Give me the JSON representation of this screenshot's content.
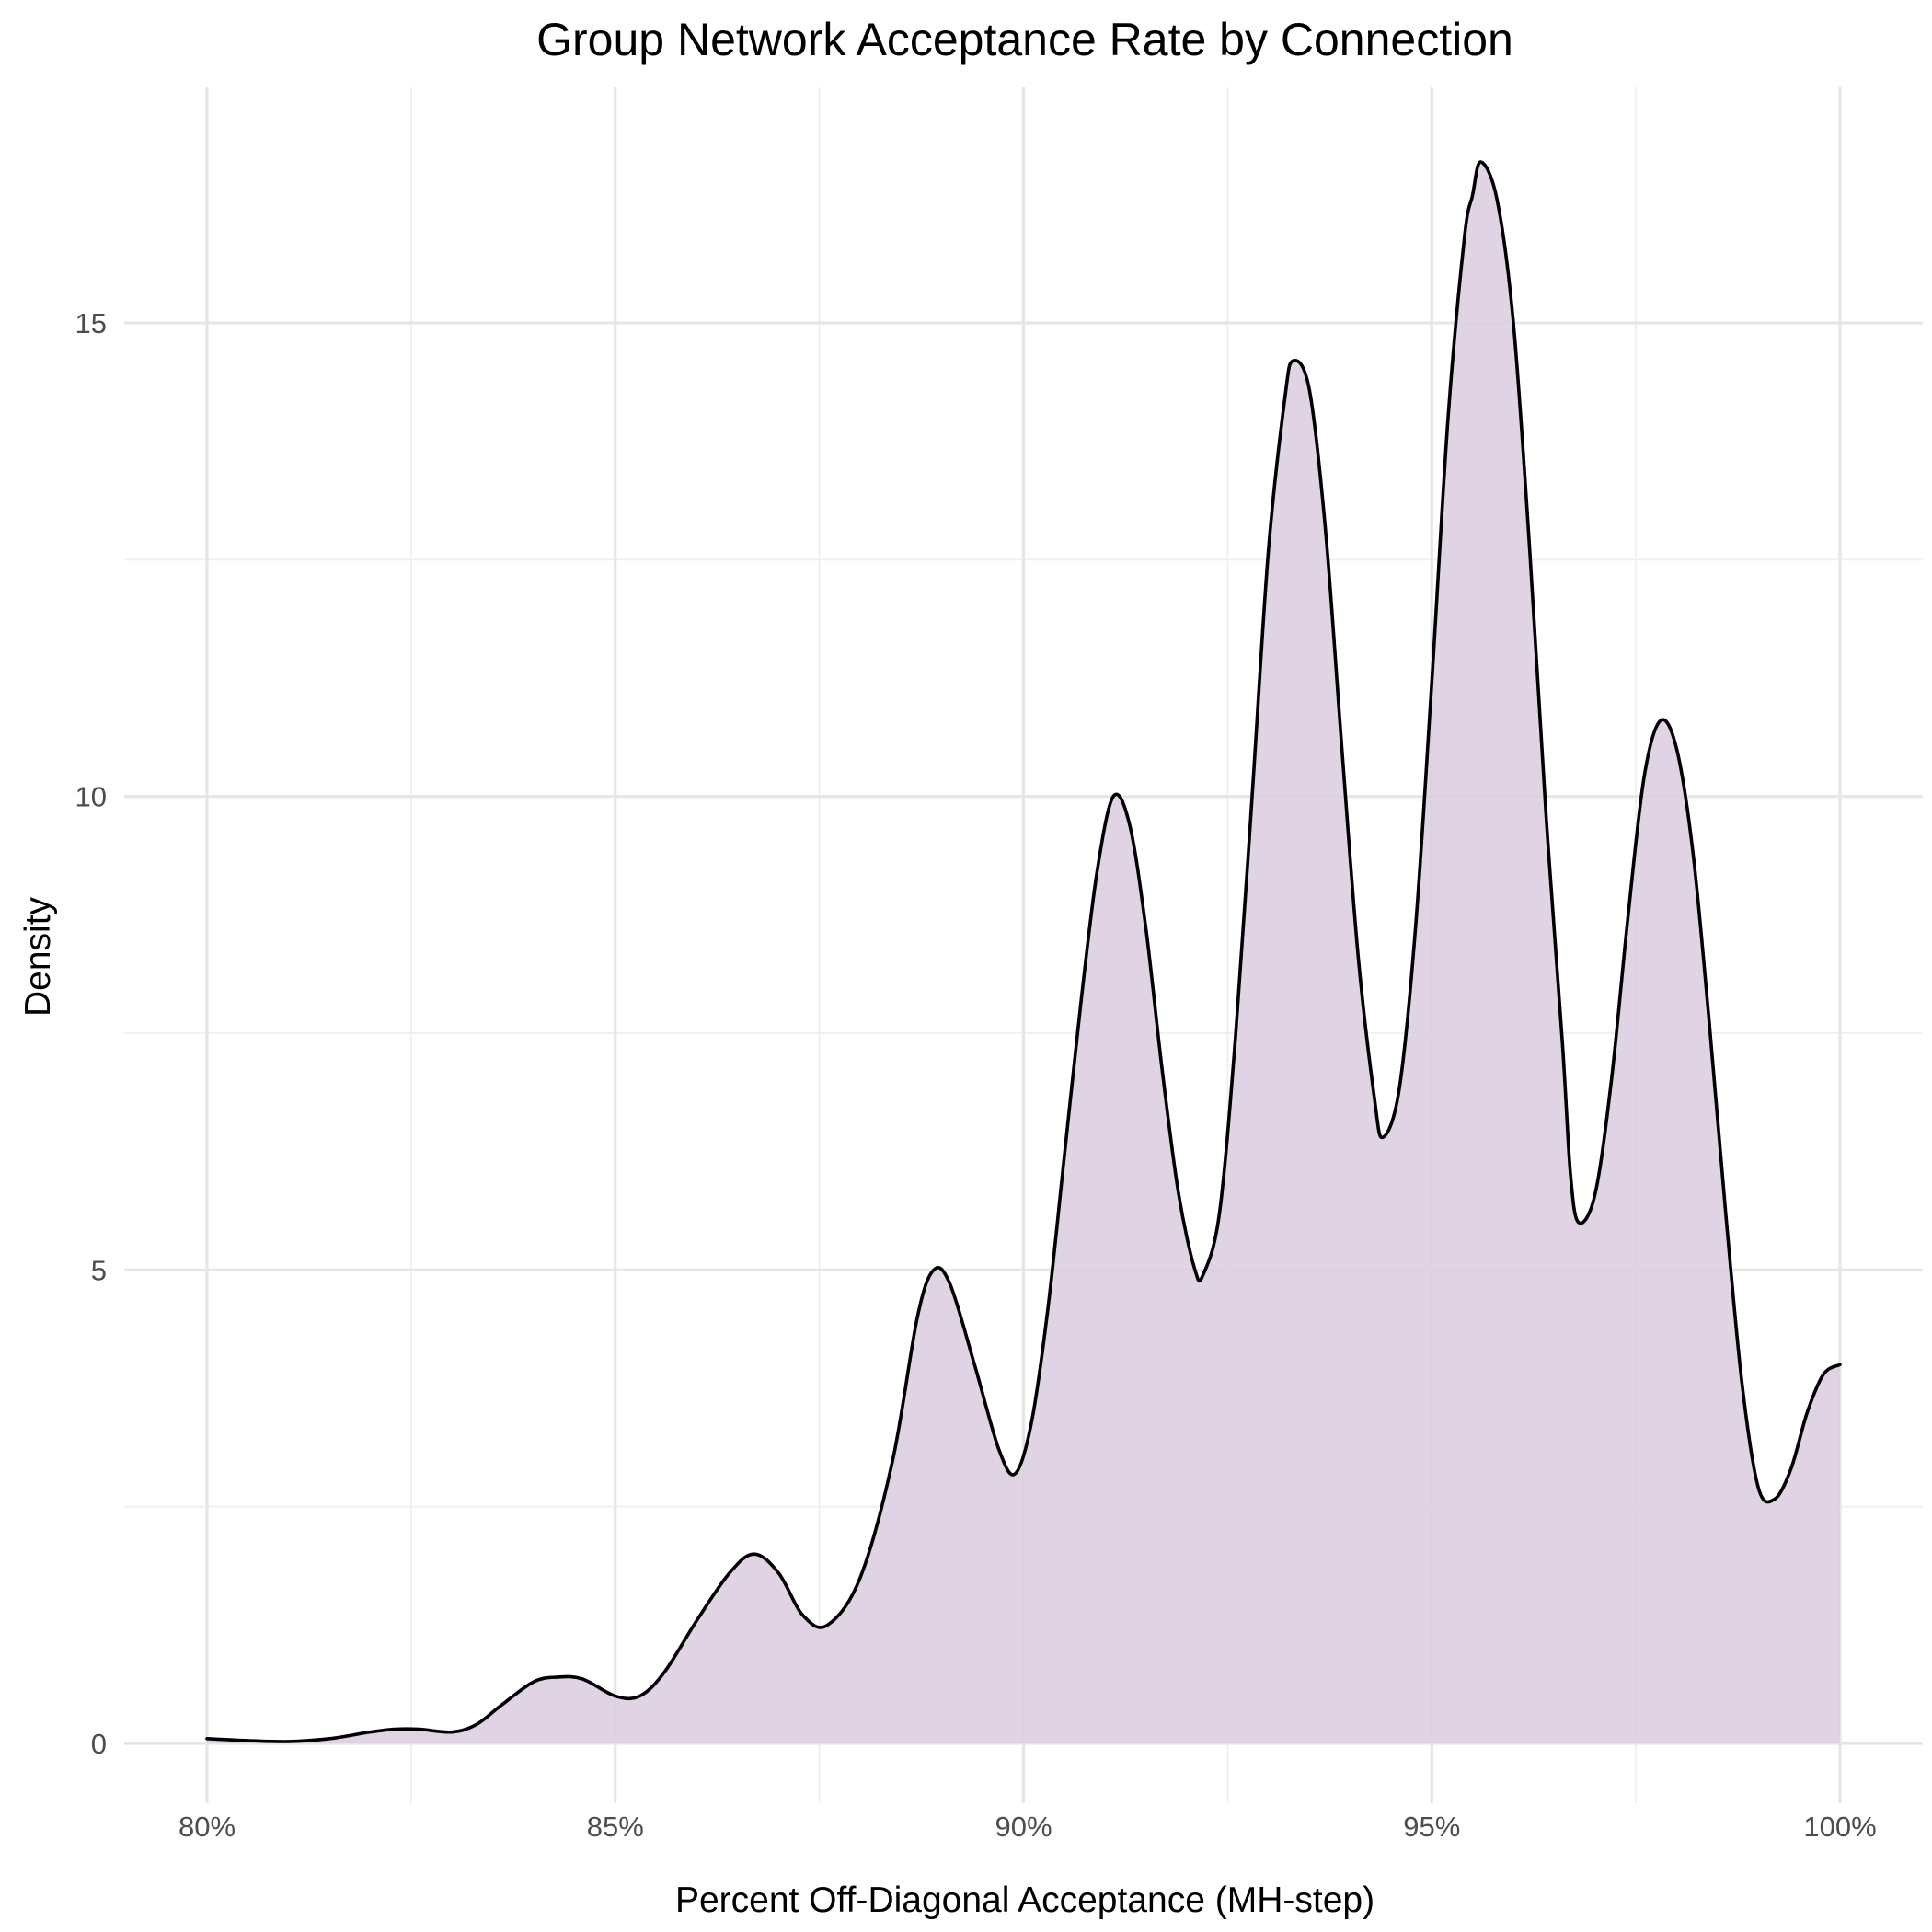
{
  "chart_data": {
    "type": "area",
    "title": "Group Network Acceptance Rate by Connection",
    "xlabel": "Percent Off-Diagonal Acceptance (MH-step)",
    "ylabel": "Density",
    "xlim": [
      0.8,
      1.0
    ],
    "ylim": [
      0,
      16.6
    ],
    "x_ticks": [
      0.8,
      0.85,
      0.9,
      0.95,
      1.0
    ],
    "x_tick_labels": [
      "80%",
      "85%",
      "90%",
      "95%",
      "100%"
    ],
    "y_ticks": [
      0,
      5,
      10,
      15
    ],
    "y_tick_labels": [
      "0",
      "5",
      "10",
      "15"
    ],
    "grid": true,
    "legend": "none",
    "fill_color": "#dbcddf",
    "line_color": "#000000",
    "series": [
      {
        "values": [
          [
            0.8,
            0.05
          ],
          [
            0.805,
            0.03
          ],
          [
            0.81,
            0.02
          ],
          [
            0.815,
            0.05
          ],
          [
            0.82,
            0.12
          ],
          [
            0.823,
            0.15
          ],
          [
            0.826,
            0.15
          ],
          [
            0.83,
            0.12
          ],
          [
            0.833,
            0.2
          ],
          [
            0.836,
            0.4
          ],
          [
            0.84,
            0.65
          ],
          [
            0.843,
            0.7
          ],
          [
            0.846,
            0.68
          ],
          [
            0.85,
            0.5
          ],
          [
            0.853,
            0.5
          ],
          [
            0.856,
            0.75
          ],
          [
            0.86,
            1.3
          ],
          [
            0.864,
            1.8
          ],
          [
            0.867,
            2.0
          ],
          [
            0.87,
            1.8
          ],
          [
            0.873,
            1.35
          ],
          [
            0.876,
            1.25
          ],
          [
            0.88,
            1.75
          ],
          [
            0.884,
            3.0
          ],
          [
            0.887,
            4.5
          ],
          [
            0.889,
            5.0
          ],
          [
            0.891,
            4.85
          ],
          [
            0.894,
            4.0
          ],
          [
            0.897,
            3.1
          ],
          [
            0.899,
            2.85
          ],
          [
            0.901,
            3.4
          ],
          [
            0.903,
            4.6
          ],
          [
            0.905,
            6.2
          ],
          [
            0.907,
            7.8
          ],
          [
            0.909,
            9.2
          ],
          [
            0.911,
            10.0
          ],
          [
            0.913,
            9.7
          ],
          [
            0.915,
            8.6
          ],
          [
            0.917,
            7.1
          ],
          [
            0.919,
            5.8
          ],
          [
            0.921,
            5.0
          ],
          [
            0.922,
            4.95
          ],
          [
            0.924,
            5.6
          ],
          [
            0.926,
            7.5
          ],
          [
            0.928,
            10.0
          ],
          [
            0.93,
            12.6
          ],
          [
            0.932,
            14.2
          ],
          [
            0.933,
            14.6
          ],
          [
            0.935,
            14.3
          ],
          [
            0.937,
            12.8
          ],
          [
            0.939,
            10.5
          ],
          [
            0.941,
            8.3
          ],
          [
            0.943,
            6.8
          ],
          [
            0.944,
            6.4
          ],
          [
            0.946,
            6.9
          ],
          [
            0.948,
            8.6
          ],
          [
            0.95,
            11.2
          ],
          [
            0.952,
            14.0
          ],
          [
            0.954,
            15.9
          ],
          [
            0.955,
            16.35
          ],
          [
            0.956,
            16.7
          ],
          [
            0.958,
            16.3
          ],
          [
            0.96,
            15.0
          ],
          [
            0.962,
            12.6
          ],
          [
            0.964,
            9.8
          ],
          [
            0.966,
            7.4
          ],
          [
            0.967,
            6.0
          ],
          [
            0.968,
            5.5
          ],
          [
            0.97,
            5.8
          ],
          [
            0.972,
            7.0
          ],
          [
            0.974,
            8.7
          ],
          [
            0.976,
            10.2
          ],
          [
            0.978,
            10.8
          ],
          [
            0.98,
            10.5
          ],
          [
            0.982,
            9.4
          ],
          [
            0.984,
            7.6
          ],
          [
            0.986,
            5.6
          ],
          [
            0.988,
            3.8
          ],
          [
            0.99,
            2.7
          ],
          [
            0.992,
            2.58
          ],
          [
            0.994,
            2.9
          ],
          [
            0.996,
            3.5
          ],
          [
            0.998,
            3.9
          ],
          [
            1.0,
            4.0
          ]
        ]
      }
    ]
  }
}
